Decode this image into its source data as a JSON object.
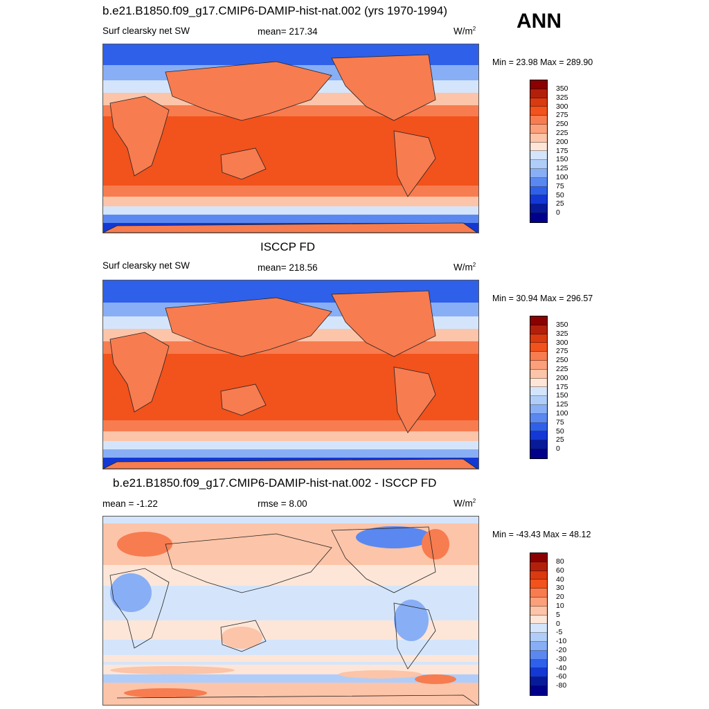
{
  "season": "ANN",
  "panels": [
    {
      "title": "b.e21.B1850.f09_g17.CMIP6-DAMIP-hist-nat.002 (yrs 1970-1994)",
      "left_label": "Surf clearsky net SW",
      "center_label": "mean= 217.34",
      "units": "W/m",
      "units_exp": "2",
      "minmax": "Min =  23.98 Max = 289.90",
      "levels": [
        "350",
        "325",
        "300",
        "275",
        "250",
        "225",
        "200",
        "175",
        "150",
        "125",
        "100",
        "75",
        "50",
        "25",
        "0"
      ],
      "colors": [
        "#8b0000",
        "#b2200b",
        "#d93a10",
        "#f2521c",
        "#f77c50",
        "#fba07a",
        "#fcc4a8",
        "#fde6d8",
        "#d4e5fb",
        "#b0cdf9",
        "#88aef5",
        "#5a88f0",
        "#2e60ea",
        "#1438d4",
        "#071a9a",
        "#00008b"
      ]
    },
    {
      "title": "ISCCP FD",
      "left_label": "Surf clearsky net SW",
      "center_label": "mean= 218.56",
      "units": "W/m",
      "units_exp": "2",
      "minmax": "Min =  30.94 Max = 296.57",
      "levels": [
        "350",
        "325",
        "300",
        "275",
        "250",
        "225",
        "200",
        "175",
        "150",
        "125",
        "100",
        "75",
        "50",
        "25",
        "0"
      ],
      "colors": [
        "#8b0000",
        "#b2200b",
        "#d93a10",
        "#f2521c",
        "#f77c50",
        "#fba07a",
        "#fcc4a8",
        "#fde6d8",
        "#d4e5fb",
        "#b0cdf9",
        "#88aef5",
        "#5a88f0",
        "#2e60ea",
        "#1438d4",
        "#071a9a",
        "#00008b"
      ]
    },
    {
      "title": "b.e21.B1850.f09_g17.CMIP6-DAMIP-hist-nat.002 - ISCCP FD",
      "left_label": "mean =  -1.22",
      "center_label": "rmse =   8.00",
      "units": "W/m",
      "units_exp": "2",
      "minmax": "Min = -43.43 Max =  48.12",
      "levels": [
        "80",
        "60",
        "40",
        "30",
        "20",
        "10",
        "5",
        "0",
        "-5",
        "-10",
        "-20",
        "-30",
        "-40",
        "-60",
        "-80"
      ],
      "colors": [
        "#8b0000",
        "#b2200b",
        "#d93a10",
        "#f2521c",
        "#f77c50",
        "#fba07a",
        "#fcc4a8",
        "#fde6d8",
        "#d4e5fb",
        "#b0cdf9",
        "#88aef5",
        "#5a88f0",
        "#2e60ea",
        "#1438d4",
        "#071a9a",
        "#00008b"
      ]
    }
  ]
}
